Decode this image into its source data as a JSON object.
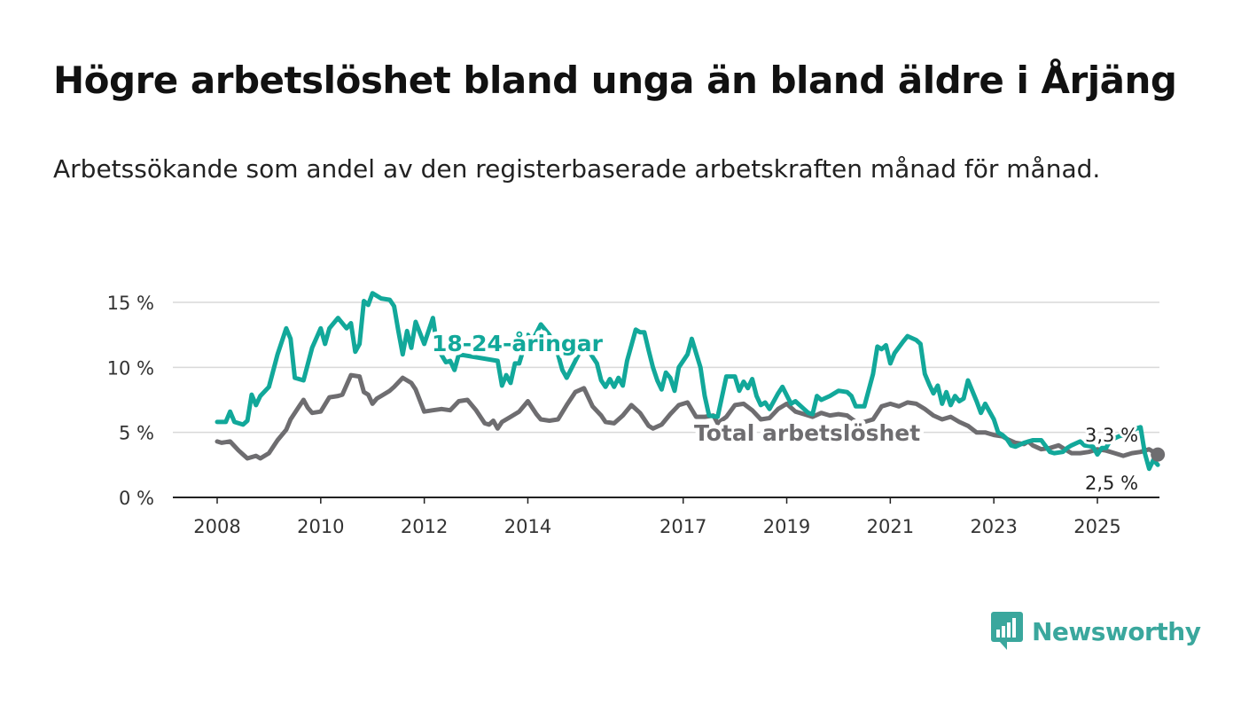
{
  "title": "Högre arbetslöshet bland unga än bland äldre i Årjäng",
  "subtitle": "Arbetssökande som andel av den registerbaserade arbetskraften månad för månad.",
  "brand": {
    "name": "Newsworthy",
    "color": "#3aa79d",
    "icon": "bar-chart-speech-bubble-icon"
  },
  "chart_data": {
    "type": "line",
    "xlim": [
      "2008-01",
      "2025-06"
    ],
    "ylim": [
      0,
      15
    ],
    "x_ticks": [
      {
        "x": "2008-01",
        "label": "2008"
      },
      {
        "x": "2010-01",
        "label": "2010"
      },
      {
        "x": "2012-01",
        "label": "2012"
      },
      {
        "x": "2014-01",
        "label": "2014"
      },
      {
        "x": "2017-01",
        "label": "2017"
      },
      {
        "x": "2019-01",
        "label": "2019"
      },
      {
        "x": "2021-01",
        "label": "2021"
      },
      {
        "x": "2023-01",
        "label": "2023"
      },
      {
        "x": "2025-01",
        "label": "2025"
      }
    ],
    "y_ticks": [
      {
        "y": 0,
        "label": "0 %"
      },
      {
        "y": 5,
        "label": "5 %"
      },
      {
        "y": 10,
        "label": "10 %"
      },
      {
        "y": 15,
        "label": "15 %"
      }
    ],
    "grid": true,
    "series": [
      {
        "name": "18-24-åringar",
        "color": "#12a89a",
        "end_label": "2,5 %",
        "points": [
          [
            "2008-01",
            5.8
          ],
          [
            "2008-03",
            5.8
          ],
          [
            "2008-04",
            6.6
          ],
          [
            "2008-05",
            5.8
          ],
          [
            "2008-07",
            5.6
          ],
          [
            "2008-08",
            5.9
          ],
          [
            "2008-09",
            7.9
          ],
          [
            "2008-10",
            7.1
          ],
          [
            "2008-11",
            7.8
          ],
          [
            "2009-01",
            8.5
          ],
          [
            "2009-03",
            11.0
          ],
          [
            "2009-05",
            13.0
          ],
          [
            "2009-06",
            12.2
          ],
          [
            "2009-07",
            9.2
          ],
          [
            "2009-09",
            9.0
          ],
          [
            "2009-11",
            11.5
          ],
          [
            "2010-01",
            13.0
          ],
          [
            "2010-02",
            11.8
          ],
          [
            "2010-03",
            13.0
          ],
          [
            "2010-05",
            13.8
          ],
          [
            "2010-07",
            13.0
          ],
          [
            "2010-08",
            13.4
          ],
          [
            "2010-09",
            11.2
          ],
          [
            "2010-10",
            11.8
          ],
          [
            "2010-11",
            15.1
          ],
          [
            "2010-12",
            14.8
          ],
          [
            "2011-01",
            15.7
          ],
          [
            "2011-03",
            15.3
          ],
          [
            "2011-05",
            15.2
          ],
          [
            "2011-06",
            14.7
          ],
          [
            "2011-07",
            12.8
          ],
          [
            "2011-08",
            11.0
          ],
          [
            "2011-09",
            12.8
          ],
          [
            "2011-10",
            11.5
          ],
          [
            "2011-11",
            13.5
          ],
          [
            "2012-01",
            11.8
          ],
          [
            "2012-03",
            13.8
          ],
          [
            "2012-04",
            11.5
          ],
          [
            "2012-06",
            10.4
          ],
          [
            "2012-07",
            10.5
          ],
          [
            "2012-08",
            9.8
          ],
          [
            "2012-09",
            11.0
          ],
          [
            "2013-06",
            10.5
          ],
          [
            "2013-07",
            8.6
          ],
          [
            "2013-08",
            9.4
          ],
          [
            "2013-09",
            8.8
          ],
          [
            "2013-10",
            10.3
          ],
          [
            "2013-11",
            10.3
          ],
          [
            "2014-01",
            12.5
          ],
          [
            "2014-02",
            12.0
          ],
          [
            "2014-04",
            13.3
          ],
          [
            "2014-06",
            12.5
          ],
          [
            "2014-08",
            11.0
          ],
          [
            "2014-09",
            9.8
          ],
          [
            "2014-10",
            9.2
          ],
          [
            "2015-02",
            11.8
          ],
          [
            "2015-05",
            10.3
          ],
          [
            "2015-06",
            9.0
          ],
          [
            "2015-07",
            8.5
          ],
          [
            "2015-08",
            9.1
          ],
          [
            "2015-09",
            8.5
          ],
          [
            "2015-10",
            9.2
          ],
          [
            "2015-11",
            8.6
          ],
          [
            "2015-12",
            10.5
          ],
          [
            "2016-02",
            12.9
          ],
          [
            "2016-03",
            12.7
          ],
          [
            "2016-04",
            12.7
          ],
          [
            "2016-05",
            11.3
          ],
          [
            "2016-06",
            10.0
          ],
          [
            "2016-07",
            9.0
          ],
          [
            "2016-08",
            8.3
          ],
          [
            "2016-09",
            9.6
          ],
          [
            "2016-10",
            9.2
          ],
          [
            "2016-11",
            8.2
          ],
          [
            "2016-12",
            10.0
          ],
          [
            "2017-02",
            11.0
          ],
          [
            "2017-03",
            12.2
          ],
          [
            "2017-05",
            10.0
          ],
          [
            "2017-06",
            7.8
          ],
          [
            "2017-07",
            6.3
          ],
          [
            "2017-09",
            6.2
          ],
          [
            "2017-11",
            9.3
          ],
          [
            "2018-01",
            9.3
          ],
          [
            "2018-02",
            8.2
          ],
          [
            "2018-03",
            8.9
          ],
          [
            "2018-04",
            8.4
          ],
          [
            "2018-05",
            9.1
          ],
          [
            "2018-06",
            7.8
          ],
          [
            "2018-07",
            7.1
          ],
          [
            "2018-08",
            7.3
          ],
          [
            "2018-09",
            6.8
          ],
          [
            "2018-11",
            8.0
          ],
          [
            "2018-12",
            8.5
          ],
          [
            "2019-02",
            7.2
          ],
          [
            "2019-03",
            7.4
          ],
          [
            "2019-05",
            6.8
          ],
          [
            "2019-06",
            6.5
          ],
          [
            "2019-07",
            6.4
          ],
          [
            "2019-08",
            7.8
          ],
          [
            "2019-09",
            7.5
          ],
          [
            "2019-11",
            7.8
          ],
          [
            "2020-01",
            8.2
          ],
          [
            "2020-03",
            8.1
          ],
          [
            "2020-04",
            7.8
          ],
          [
            "2020-05",
            7.0
          ],
          [
            "2020-07",
            7.0
          ],
          [
            "2020-09",
            9.5
          ],
          [
            "2020-10",
            11.6
          ],
          [
            "2020-11",
            11.4
          ],
          [
            "2020-12",
            11.7
          ],
          [
            "2021-01",
            10.3
          ],
          [
            "2021-02",
            11.1
          ],
          [
            "2021-04",
            12.0
          ],
          [
            "2021-05",
            12.4
          ],
          [
            "2021-07",
            12.1
          ],
          [
            "2021-08",
            11.8
          ],
          [
            "2021-09",
            9.5
          ],
          [
            "2021-10",
            8.7
          ],
          [
            "2021-11",
            8.0
          ],
          [
            "2021-12",
            8.6
          ],
          [
            "2022-01",
            7.2
          ],
          [
            "2022-02",
            8.1
          ],
          [
            "2022-03",
            7.1
          ],
          [
            "2022-04",
            7.8
          ],
          [
            "2022-05",
            7.4
          ],
          [
            "2022-06",
            7.6
          ],
          [
            "2022-07",
            9.0
          ],
          [
            "2022-09",
            7.4
          ],
          [
            "2022-10",
            6.5
          ],
          [
            "2022-11",
            7.2
          ],
          [
            "2023-01",
            6.0
          ],
          [
            "2023-02",
            5.0
          ],
          [
            "2023-03",
            4.8
          ],
          [
            "2023-04",
            4.5
          ],
          [
            "2023-05",
            4.0
          ],
          [
            "2023-06",
            3.9
          ],
          [
            "2023-08",
            4.2
          ],
          [
            "2023-10",
            4.4
          ],
          [
            "2023-12",
            4.4
          ],
          [
            "2024-02",
            3.5
          ],
          [
            "2024-03",
            3.4
          ],
          [
            "2024-05",
            3.5
          ],
          [
            "2024-06",
            3.8
          ],
          [
            "2024-07",
            4.0
          ],
          [
            "2024-09",
            4.3
          ],
          [
            "2024-10",
            4.0
          ],
          [
            "2024-12",
            3.9
          ],
          [
            "2025-01",
            3.3
          ],
          [
            "2025-02",
            3.8
          ],
          [
            "2025-03",
            3.8
          ],
          [
            "2025-04",
            4.4
          ],
          [
            "2025-06",
            4.7
          ],
          [
            "2025-08",
            4.9
          ],
          [
            "2025-10",
            5.3
          ],
          [
            "2025-11",
            5.4
          ],
          [
            "2025-12",
            3.4
          ],
          [
            "2026-01",
            2.2
          ],
          [
            "2026-02",
            2.9
          ],
          [
            "2026-03",
            2.5
          ]
        ]
      },
      {
        "name": "Total arbetslöshet",
        "color": "#6e6d70",
        "end_label": "3,3 %",
        "points": [
          [
            "2008-01",
            4.3
          ],
          [
            "2008-02",
            4.2
          ],
          [
            "2008-04",
            4.3
          ],
          [
            "2008-06",
            3.6
          ],
          [
            "2008-07",
            3.3
          ],
          [
            "2008-08",
            3.0
          ],
          [
            "2008-10",
            3.2
          ],
          [
            "2008-11",
            3.0
          ],
          [
            "2009-01",
            3.4
          ],
          [
            "2009-03",
            4.4
          ],
          [
            "2009-05",
            5.2
          ],
          [
            "2009-06",
            6.0
          ],
          [
            "2009-08",
            7.0
          ],
          [
            "2009-09",
            7.5
          ],
          [
            "2009-10",
            6.9
          ],
          [
            "2009-11",
            6.5
          ],
          [
            "2010-01",
            6.6
          ],
          [
            "2010-03",
            7.7
          ],
          [
            "2010-05",
            7.8
          ],
          [
            "2010-06",
            7.9
          ],
          [
            "2010-08",
            9.4
          ],
          [
            "2010-10",
            9.3
          ],
          [
            "2010-11",
            8.1
          ],
          [
            "2010-12",
            7.9
          ],
          [
            "2011-01",
            7.2
          ],
          [
            "2011-02",
            7.6
          ],
          [
            "2011-03",
            7.8
          ],
          [
            "2011-05",
            8.2
          ],
          [
            "2011-06",
            8.5
          ],
          [
            "2011-08",
            9.2
          ],
          [
            "2011-10",
            8.8
          ],
          [
            "2011-11",
            8.3
          ],
          [
            "2012-01",
            6.6
          ],
          [
            "2012-03",
            6.7
          ],
          [
            "2012-05",
            6.8
          ],
          [
            "2012-07",
            6.7
          ],
          [
            "2012-09",
            7.4
          ],
          [
            "2012-11",
            7.5
          ],
          [
            "2013-01",
            6.7
          ],
          [
            "2013-03",
            5.7
          ],
          [
            "2013-04",
            5.6
          ],
          [
            "2013-05",
            5.9
          ],
          [
            "2013-06",
            5.3
          ],
          [
            "2013-07",
            5.8
          ],
          [
            "2013-09",
            6.2
          ],
          [
            "2013-11",
            6.6
          ],
          [
            "2014-01",
            7.4
          ],
          [
            "2014-03",
            6.4
          ],
          [
            "2014-04",
            6.0
          ],
          [
            "2014-06",
            5.9
          ],
          [
            "2014-08",
            6.0
          ],
          [
            "2014-10",
            7.1
          ],
          [
            "2014-12",
            8.1
          ],
          [
            "2015-02",
            8.4
          ],
          [
            "2015-04",
            7.0
          ],
          [
            "2015-06",
            6.3
          ],
          [
            "2015-07",
            5.8
          ],
          [
            "2015-09",
            5.7
          ],
          [
            "2015-11",
            6.3
          ],
          [
            "2016-01",
            7.1
          ],
          [
            "2016-03",
            6.5
          ],
          [
            "2016-05",
            5.5
          ],
          [
            "2016-06",
            5.3
          ],
          [
            "2016-08",
            5.6
          ],
          [
            "2016-10",
            6.4
          ],
          [
            "2016-12",
            7.1
          ],
          [
            "2017-02",
            7.3
          ],
          [
            "2017-04",
            6.2
          ],
          [
            "2017-06",
            6.2
          ],
          [
            "2017-08",
            6.3
          ],
          [
            "2017-09",
            5.7
          ],
          [
            "2017-11",
            6.2
          ],
          [
            "2018-01",
            7.1
          ],
          [
            "2018-03",
            7.2
          ],
          [
            "2018-05",
            6.7
          ],
          [
            "2018-07",
            6.0
          ],
          [
            "2018-09",
            6.1
          ],
          [
            "2018-11",
            6.8
          ],
          [
            "2019-01",
            7.2
          ],
          [
            "2019-03",
            6.6
          ],
          [
            "2019-05",
            6.4
          ],
          [
            "2019-07",
            6.2
          ],
          [
            "2019-09",
            6.5
          ],
          [
            "2019-11",
            6.3
          ],
          [
            "2020-01",
            6.4
          ],
          [
            "2020-03",
            6.3
          ],
          [
            "2020-05",
            5.8
          ],
          [
            "2020-07",
            5.8
          ],
          [
            "2020-09",
            6.0
          ],
          [
            "2020-11",
            7.0
          ],
          [
            "2021-01",
            7.2
          ],
          [
            "2021-03",
            7.0
          ],
          [
            "2021-05",
            7.3
          ],
          [
            "2021-07",
            7.2
          ],
          [
            "2021-09",
            6.8
          ],
          [
            "2021-11",
            6.3
          ],
          [
            "2022-01",
            6.0
          ],
          [
            "2022-03",
            6.2
          ],
          [
            "2022-05",
            5.8
          ],
          [
            "2022-07",
            5.5
          ],
          [
            "2022-09",
            5.0
          ],
          [
            "2022-11",
            5.0
          ],
          [
            "2023-01",
            4.8
          ],
          [
            "2023-03",
            4.7
          ],
          [
            "2023-04",
            4.5
          ],
          [
            "2023-06",
            4.2
          ],
          [
            "2023-08",
            4.1
          ],
          [
            "2023-09",
            4.3
          ],
          [
            "2023-10",
            4.0
          ],
          [
            "2023-12",
            3.7
          ],
          [
            "2024-02",
            3.8
          ],
          [
            "2024-04",
            4.0
          ],
          [
            "2024-06",
            3.6
          ],
          [
            "2024-07",
            3.4
          ],
          [
            "2024-09",
            3.4
          ],
          [
            "2024-11",
            3.5
          ],
          [
            "2025-01",
            3.7
          ],
          [
            "2025-03",
            3.6
          ],
          [
            "2025-05",
            3.4
          ],
          [
            "2025-07",
            3.2
          ],
          [
            "2025-09",
            3.4
          ],
          [
            "2025-11",
            3.5
          ],
          [
            "2026-01",
            3.7
          ],
          [
            "2026-03",
            3.3
          ]
        ]
      }
    ]
  }
}
